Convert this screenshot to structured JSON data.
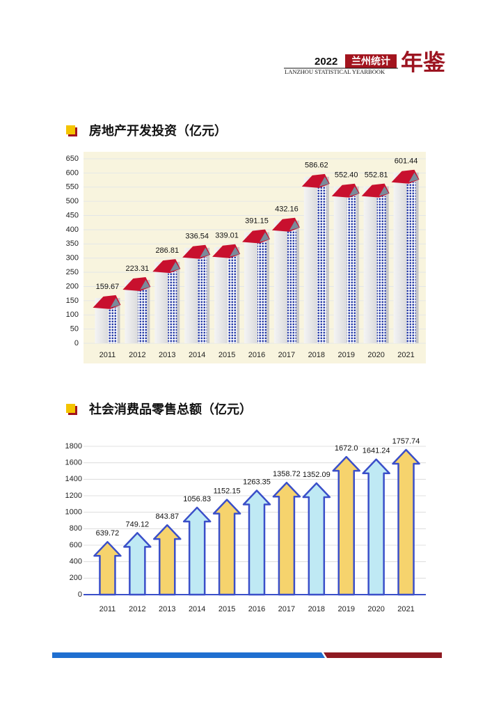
{
  "header": {
    "year": "2022",
    "brand": "兰州统计",
    "book": "年鉴",
    "subtitle": "LANZHOU STATISTICAL YEARBOOK"
  },
  "chart_data": [
    {
      "type": "building",
      "title": "房地产开发投资（亿元）",
      "categories": [
        "2011",
        "2012",
        "2013",
        "2014",
        "2015",
        "2016",
        "2017",
        "2018",
        "2019",
        "2020",
        "2021"
      ],
      "values": [
        159.67,
        223.31,
        286.81,
        336.54,
        339.01,
        391.15,
        432.16,
        586.62,
        552.4,
        552.81,
        601.44
      ],
      "value_labels": [
        "159.67",
        "223.31",
        "286.81",
        "336.54",
        "339.01",
        "391.15",
        "432.16",
        "586.62",
        "552.40",
        "552.81",
        "601.44"
      ],
      "ylim": [
        0,
        650
      ],
      "yticks": [
        0,
        50,
        100,
        150,
        200,
        250,
        300,
        350,
        400,
        450,
        500,
        550,
        600,
        650
      ],
      "grid": true,
      "colors": [
        "#c8102e",
        "#2b3fa8"
      ]
    },
    {
      "type": "arrow",
      "title": "社会消费品零售总额（亿元）",
      "categories": [
        "2011",
        "2012",
        "2013",
        "2014",
        "2015",
        "2016",
        "2017",
        "2018",
        "2019",
        "2020",
        "2021"
      ],
      "values": [
        639.72,
        749.12,
        843.87,
        1056.83,
        1152.15,
        1263.35,
        1358.72,
        1352.09,
        1672.0,
        1641.24,
        1757.74
      ],
      "value_labels": [
        "639.72",
        "749.12",
        "843.87",
        "1056.83",
        "1152.15",
        "1263.35",
        "1358.72",
        "1352.09",
        "1672.0",
        "1641.24",
        "1757.74"
      ],
      "ylim": [
        0,
        1800
      ],
      "yticks": [
        0,
        200,
        400,
        600,
        800,
        1000,
        1200,
        1400,
        1600,
        1800
      ],
      "grid": true,
      "colors": [
        "#f6d36d",
        "#bfe9f4"
      ]
    }
  ]
}
